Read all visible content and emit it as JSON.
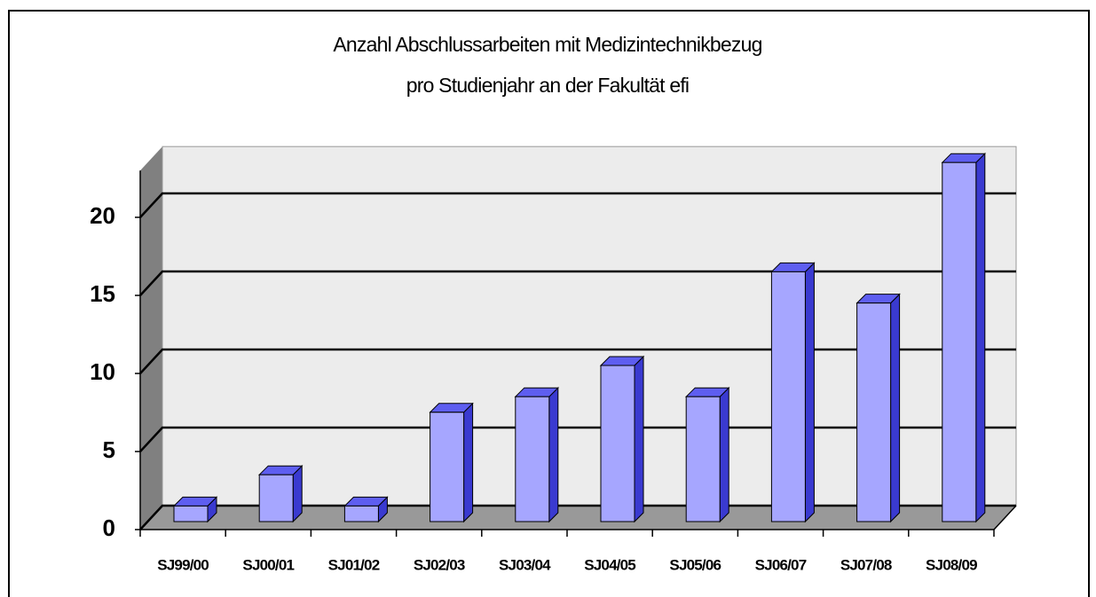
{
  "chart_data": {
    "type": "bar3d",
    "title": [
      "Anzahl Abschlussarbeiten mit Medizintechnikbezug",
      "pro Studienjahr an der Fakultät efi"
    ],
    "categories": [
      "SJ99/00",
      "SJ00/01",
      "SJ01/02",
      "SJ02/03",
      "SJ03/04",
      "SJ04/05",
      "SJ05/06",
      "SJ06/07",
      "SJ07/08",
      "SJ08/09"
    ],
    "values": [
      1,
      3,
      1,
      7,
      8,
      10,
      8,
      16,
      14,
      23
    ],
    "color": "#a6a6ff",
    "ylim": [
      0,
      23
    ],
    "yticks": [
      0,
      5,
      10,
      15,
      20
    ],
    "grid": true
  }
}
